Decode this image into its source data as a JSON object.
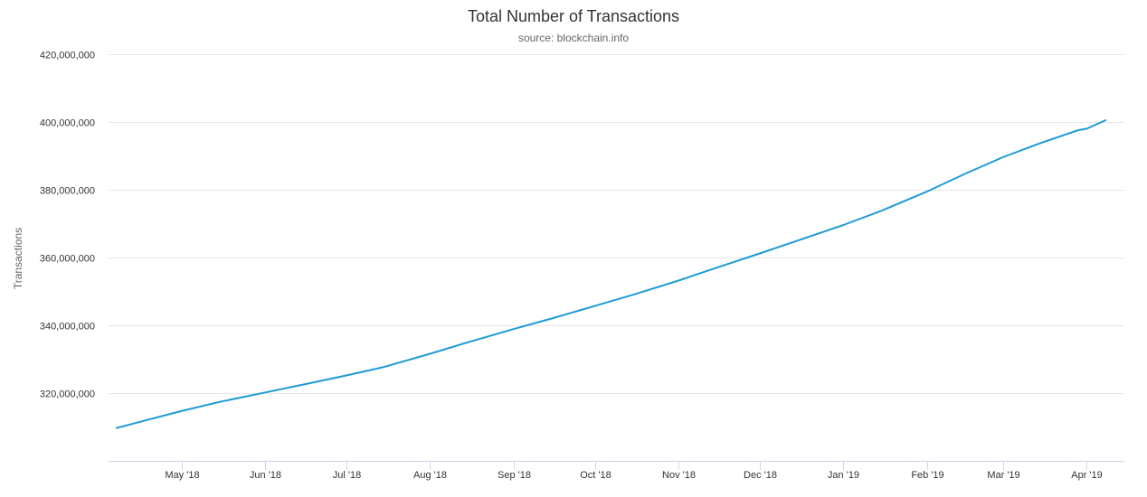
{
  "chart_data": {
    "type": "line",
    "title": "Total Number of Transactions",
    "subtitle": "source: blockchain.info",
    "ylabel": "Transactions",
    "xlabel": "",
    "xlim": [
      "2018-04-04",
      "2019-04-15"
    ],
    "ylim": [
      300000000,
      420000000
    ],
    "y_ticks": [
      {
        "value": 320000000,
        "label": "320,000,000"
      },
      {
        "value": 340000000,
        "label": "340,000,000"
      },
      {
        "value": 360000000,
        "label": "360,000,000"
      },
      {
        "value": 380000000,
        "label": "380,000,000"
      },
      {
        "value": 400000000,
        "label": "400,000,000"
      },
      {
        "value": 420000000,
        "label": "420,000,000"
      }
    ],
    "x_ticks": [
      {
        "date": "2018-05-01",
        "label": "May '18"
      },
      {
        "date": "2018-06-01",
        "label": "Jun '18"
      },
      {
        "date": "2018-07-01",
        "label": "Jul '18"
      },
      {
        "date": "2018-08-01",
        "label": "Aug '18"
      },
      {
        "date": "2018-09-01",
        "label": "Sep '18"
      },
      {
        "date": "2018-10-01",
        "label": "Oct '18"
      },
      {
        "date": "2018-11-01",
        "label": "Nov '18"
      },
      {
        "date": "2018-12-01",
        "label": "Dec '18"
      },
      {
        "date": "2019-01-01",
        "label": "Jan '19"
      },
      {
        "date": "2019-02-01",
        "label": "Feb '19"
      },
      {
        "date": "2019-03-01",
        "label": "Mar '19"
      },
      {
        "date": "2019-04-01",
        "label": "Apr '19"
      }
    ],
    "grid": true,
    "legend": "none",
    "series": [
      {
        "color": "#1f9bd5",
        "points": [
          {
            "x": "2018-04-07",
            "y": 309700000
          },
          {
            "x": "2018-04-15",
            "y": 311400000
          },
          {
            "x": "2018-05-01",
            "y": 314700000
          },
          {
            "x": "2018-05-15",
            "y": 317400000
          },
          {
            "x": "2018-06-01",
            "y": 320200000
          },
          {
            "x": "2018-06-15",
            "y": 322500000
          },
          {
            "x": "2018-07-01",
            "y": 325200000
          },
          {
            "x": "2018-07-15",
            "y": 327700000
          },
          {
            "x": "2018-08-01",
            "y": 331600000
          },
          {
            "x": "2018-08-15",
            "y": 335000000
          },
          {
            "x": "2018-09-01",
            "y": 338900000
          },
          {
            "x": "2018-09-15",
            "y": 342000000
          },
          {
            "x": "2018-10-01",
            "y": 345700000
          },
          {
            "x": "2018-10-15",
            "y": 349000000
          },
          {
            "x": "2018-11-01",
            "y": 353200000
          },
          {
            "x": "2018-11-15",
            "y": 357000000
          },
          {
            "x": "2018-12-01",
            "y": 361200000
          },
          {
            "x": "2018-12-15",
            "y": 365000000
          },
          {
            "x": "2019-01-01",
            "y": 369600000
          },
          {
            "x": "2019-01-15",
            "y": 373800000
          },
          {
            "x": "2019-02-01",
            "y": 379500000
          },
          {
            "x": "2019-02-15",
            "y": 384700000
          },
          {
            "x": "2019-03-01",
            "y": 389600000
          },
          {
            "x": "2019-03-15",
            "y": 393800000
          },
          {
            "x": "2019-03-29",
            "y": 397600000
          },
          {
            "x": "2019-04-01",
            "y": 398000000
          },
          {
            "x": "2019-04-08",
            "y": 400500000
          }
        ]
      }
    ]
  }
}
